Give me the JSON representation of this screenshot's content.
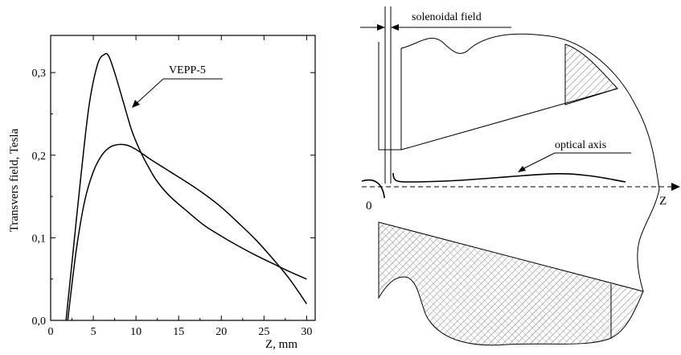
{
  "chart_data": {
    "type": "line",
    "xlabel": "Z,   mm",
    "ylabel": "Transvers field,   Tesla",
    "xlim": [
      0,
      31
    ],
    "ylim": [
      0,
      0.345
    ],
    "x_ticks": [
      0,
      5,
      10,
      15,
      20,
      25,
      30
    ],
    "x_tick_labels": [
      "0",
      "5",
      "10",
      "15",
      "20",
      "25",
      "30"
    ],
    "y_ticks": [
      0.0,
      0.1,
      0.2,
      0.3
    ],
    "y_tick_labels": [
      "0,0",
      "0,1",
      "0,2",
      "0,3"
    ],
    "annotation": "VEPP-5",
    "series": [
      {
        "x": [
          1.8,
          2.5,
          3.5,
          4.5,
          5.5,
          6.3,
          6.8,
          7.5,
          8.5,
          9.5,
          10.5,
          11.5,
          12.5,
          14,
          16,
          18,
          20,
          22,
          24,
          26,
          28,
          30
        ],
        "y": [
          0.0,
          0.07,
          0.17,
          0.26,
          0.31,
          0.322,
          0.32,
          0.3,
          0.265,
          0.23,
          0.205,
          0.185,
          0.168,
          0.15,
          0.132,
          0.115,
          0.102,
          0.09,
          0.079,
          0.069,
          0.059,
          0.05
        ]
      },
      {
        "x": [
          2.0,
          3.0,
          4.0,
          5.0,
          6.0,
          7.0,
          8.0,
          9.0,
          10.0,
          11.0,
          12.0,
          14.0,
          16.0,
          18.0,
          20.0,
          22.0,
          24.0,
          26.0,
          28.0,
          30.0
        ],
        "y": [
          0.0,
          0.085,
          0.145,
          0.18,
          0.2,
          0.21,
          0.213,
          0.212,
          0.207,
          0.2,
          0.193,
          0.18,
          0.167,
          0.153,
          0.137,
          0.118,
          0.098,
          0.075,
          0.05,
          0.02
        ]
      }
    ]
  },
  "diagram": {
    "label_solenoidal": "solenoidal  field",
    "label_optical_axis": "optical  axis",
    "label_zero": "0",
    "label_z": "Z"
  }
}
